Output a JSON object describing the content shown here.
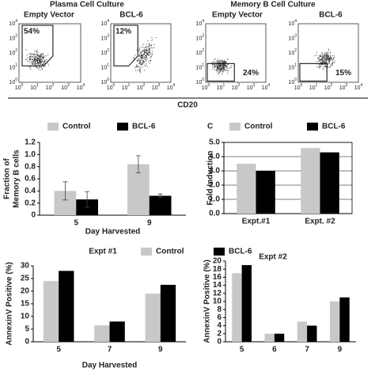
{
  "flow": {
    "titles": [
      "Plasma Cell Culture",
      "Memory B Cell Culture"
    ],
    "panels": [
      {
        "name": "Empty Vector",
        "gate": "54%"
      },
      {
        "name": "BCL-6",
        "gate": "12%"
      },
      {
        "name": "Empty Vector",
        "gate": "24%"
      },
      {
        "name": "BCL-6",
        "gate": "15%"
      }
    ],
    "axis_label": "CD20",
    "tick_base": "10",
    "tick_exponents": [
      0,
      1,
      2,
      3,
      4
    ]
  },
  "chart_data": [
    {
      "type": "bar",
      "ylabel": [
        "Fraction of",
        "Memory B cells"
      ],
      "xlabel": "Day Harvested",
      "categories": [
        "5",
        "9"
      ],
      "series": [
        {
          "name": "Control",
          "color": "#c8c8c8",
          "values": [
            0.4,
            0.84
          ],
          "errors": [
            0.15,
            0.14
          ]
        },
        {
          "name": "BCL-6",
          "color": "#000000",
          "values": [
            0.26,
            0.32
          ],
          "errors": [
            0.13,
            0.03
          ]
        }
      ],
      "ylim": [
        0,
        1.2
      ],
      "yticks": [
        0,
        0.2,
        0.4,
        0.6,
        0.8,
        {
          "value": 1,
          "label": "1.0"
        },
        1.2
      ],
      "grid": false
    },
    {
      "type": "bar",
      "panel_label": "C",
      "ylabel": "Fold Induction",
      "categories": [
        "Expt.#1",
        "Expt. #2"
      ],
      "series": [
        {
          "name": "Control",
          "color": "#c8c8c8",
          "values": [
            3.5,
            4.6
          ]
        },
        {
          "name": "BCL-6",
          "color": "#000000",
          "values": [
            3.0,
            4.3
          ]
        }
      ],
      "ylim": [
        0,
        5
      ],
      "yticks": [
        {
          "value": 0,
          "label": "0.0"
        },
        {
          "value": 1,
          "label": "1.0"
        },
        {
          "value": 2,
          "label": "2.0"
        },
        {
          "value": 3,
          "label": "3.0"
        },
        {
          "value": 4,
          "label": "4.0"
        },
        {
          "value": 5,
          "label": "5.0"
        }
      ],
      "grid": true
    },
    {
      "type": "bar",
      "title": "Expt #1",
      "ylabel": "AnnexinV Positive (%)",
      "xlabel": "Day Harvested",
      "categories": [
        "5",
        "7",
        "9"
      ],
      "series": [
        {
          "name": "Control",
          "color": "#c8c8c8",
          "values": [
            24,
            6.5,
            19
          ]
        },
        {
          "color": "#000000",
          "values": [
            28,
            8,
            22.5
          ]
        }
      ],
      "ylim": [
        0,
        30
      ],
      "yticks": [
        0,
        5,
        10,
        15,
        20,
        25,
        30
      ],
      "grid": false
    },
    {
      "type": "bar",
      "title": "Expt #2",
      "ylabel": "AnnexinV Positive (%)",
      "categories": [
        "5",
        "6",
        "7",
        "9"
      ],
      "series": [
        {
          "color": "#c8c8c8",
          "values": [
            17,
            2,
            5,
            10
          ]
        },
        {
          "name": "BCL-6",
          "color": "#000000",
          "values": [
            19,
            2,
            4,
            11
          ]
        }
      ],
      "ylim": [
        0,
        20
      ],
      "yticks": [
        0,
        2,
        4,
        6,
        8,
        10,
        12,
        14,
        16,
        18,
        20
      ],
      "grid": false
    }
  ]
}
